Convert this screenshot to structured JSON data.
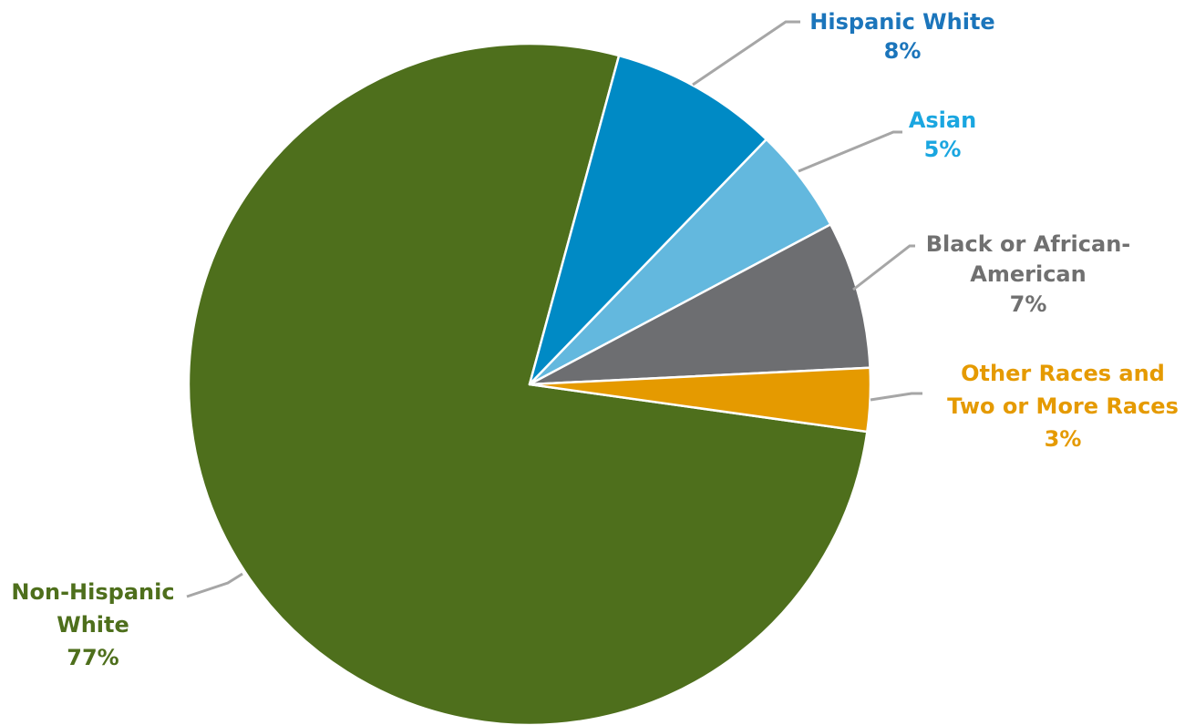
{
  "chart_data": {
    "type": "pie",
    "title": "",
    "slices": [
      {
        "label_lines": [
          "Non-Hispanic",
          "White"
        ],
        "percent_label": "77%",
        "value": 77,
        "color": "#4e6f1c"
      },
      {
        "label_lines": [
          "Hispanic White"
        ],
        "percent_label": "8%",
        "value": 8,
        "color": "#008ac5",
        "label_color": "#1b75bb"
      },
      {
        "label_lines": [
          "Asian"
        ],
        "percent_label": "5%",
        "value": 5,
        "color": "#63b8de",
        "label_color": "#1aa6e0"
      },
      {
        "label_lines": [
          "Black or African-",
          "American"
        ],
        "percent_label": "7%",
        "value": 7,
        "color": "#6d6e71",
        "label_color": "#707070"
      },
      {
        "label_lines": [
          "Other Races and",
          "Two or More Races"
        ],
        "percent_label": "3%",
        "value": 3,
        "color": "#e59a00",
        "label_color": "#e59a00"
      }
    ]
  }
}
